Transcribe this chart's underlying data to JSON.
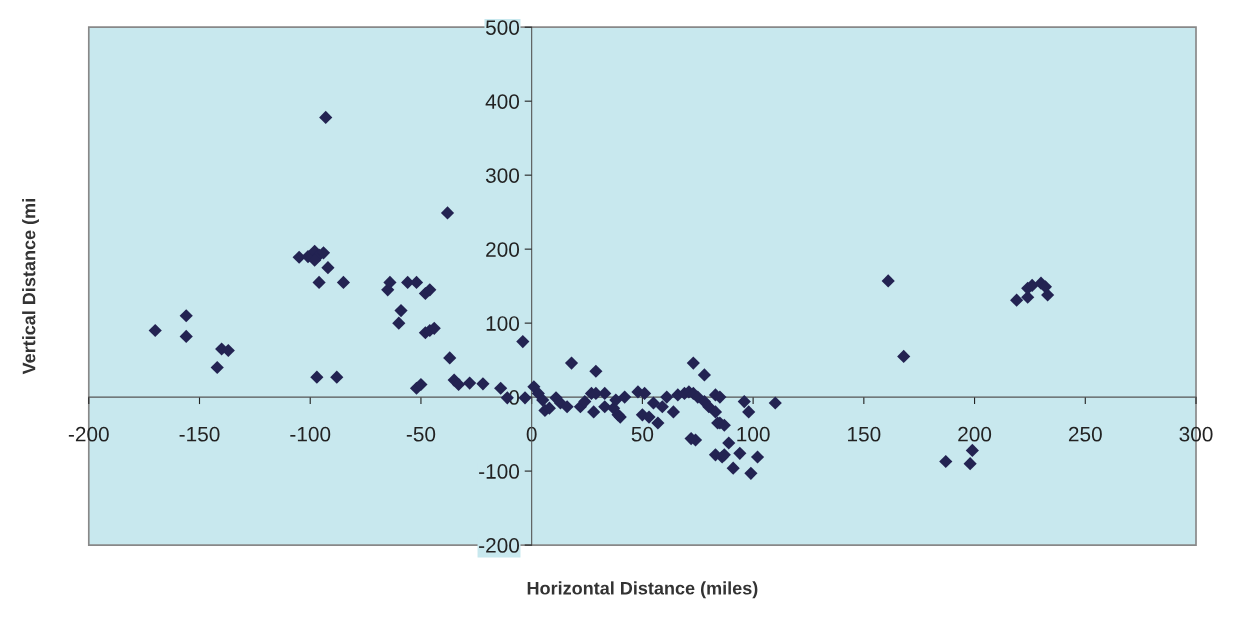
{
  "chart_data": {
    "type": "scatter",
    "xlabel": "Horizontal Distance (miles)",
    "ylabel": "Vertical Distance (mi",
    "xlim": [
      -200,
      300
    ],
    "xticks": [
      -200,
      -150,
      -100,
      -50,
      0,
      50,
      100,
      150,
      200,
      250,
      300
    ],
    "ylim": [
      -200,
      500
    ],
    "yticks": [
      -200,
      -100,
      0,
      100,
      200,
      300,
      400,
      500
    ],
    "marker": "diamond",
    "grid": false,
    "legend": false,
    "series": [
      {
        "color": "#232352",
        "x": [
          -170,
          -156,
          -156,
          -142,
          -140,
          -137,
          -105,
          -101,
          -98,
          -96,
          -98,
          -94,
          -92,
          -96,
          -85,
          -97,
          -88,
          -93,
          -65,
          -64,
          -59,
          -60,
          -56,
          -52,
          -48,
          -46,
          -48,
          -46,
          -44,
          -52,
          -50,
          -38,
          -37,
          -35,
          -33,
          -28,
          -22,
          -14,
          -11,
          -3,
          -4,
          1,
          3,
          5,
          6,
          8,
          11,
          13,
          16,
          18,
          22,
          24,
          27,
          28,
          29,
          29,
          33,
          33,
          37,
          38,
          39,
          40,
          42,
          48,
          50,
          51,
          53,
          55,
          57,
          59,
          61,
          64,
          66,
          69,
          71,
          73,
          73,
          74,
          72,
          78,
          75,
          78,
          80,
          83,
          83,
          85,
          85,
          84,
          87,
          89,
          83,
          86,
          87,
          94,
          91,
          96,
          98,
          99,
          102,
          110,
          161,
          168,
          187,
          198,
          199,
          219,
          224,
          224,
          226,
          230,
          232,
          233
        ],
        "values": [
          90,
          110,
          82,
          40,
          65,
          63,
          189,
          190,
          197,
          192,
          185,
          195,
          175,
          155,
          155,
          27,
          27,
          378,
          145,
          155,
          117,
          100,
          155,
          155,
          140,
          145,
          87,
          90,
          93,
          12,
          17,
          249,
          53,
          23,
          17,
          19,
          18,
          12,
          -1,
          -1,
          75,
          14,
          5,
          -4,
          -18,
          -15,
          -1,
          -8,
          -13,
          46,
          -13,
          -6,
          5,
          -20,
          35,
          5,
          5,
          -13,
          -15,
          -4,
          -24,
          -27,
          0,
          7,
          -24,
          5,
          -27,
          -8,
          -35,
          -13,
          0,
          -20,
          3,
          5,
          7,
          46,
          5,
          -58,
          -56,
          30,
          0,
          -6,
          -13,
          3,
          -20,
          0,
          -35,
          -35,
          -38,
          -62,
          -78,
          -81,
          -78,
          -76,
          -96,
          -6,
          -20,
          -103,
          -81,
          -8,
          157,
          55,
          -87,
          -90,
          -72,
          131,
          135,
          147,
          151,
          154,
          149,
          138
        ]
      }
    ]
  }
}
